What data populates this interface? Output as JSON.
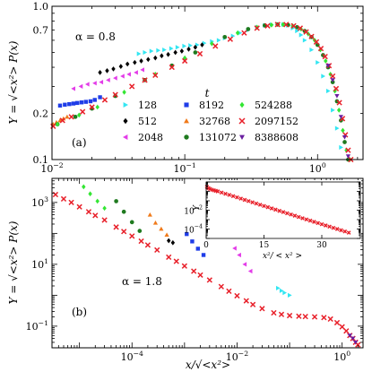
{
  "chart_data": [
    {
      "type": "scatter",
      "panel_label": "(a)",
      "annotation": "α = 0.8",
      "ylabel": "Y = √<x²> P(x)",
      "xscale": "log",
      "yscale": "log",
      "xlim": [
        0.01,
        2.2
      ],
      "ylim": [
        0.1,
        1.0
      ],
      "x_ticks": [
        "10^-2",
        "10^-1",
        "10^0"
      ],
      "y_ticks": [
        "0.1",
        "0.2",
        "0.7",
        "1.0"
      ],
      "legend_title": "t",
      "legend_placement": "lower-center",
      "series": [
        {
          "name": "128",
          "color": "#33e6f2",
          "marker": "tri-right",
          "x": [
            0.045,
            0.05,
            0.056,
            0.063,
            0.07,
            0.079,
            0.088,
            0.099,
            0.11,
            0.124,
            0.14,
            0.16,
            0.18,
            0.2,
            0.23,
            0.26,
            0.3,
            0.35,
            0.4,
            0.45,
            0.5,
            0.55,
            0.6,
            0.65,
            0.7,
            0.75,
            0.8,
            0.9,
            1.0,
            1.1,
            1.2,
            1.3,
            1.4,
            1.5,
            1.6
          ],
          "y": [
            0.49,
            0.5,
            0.51,
            0.515,
            0.52,
            0.53,
            0.54,
            0.55,
            0.555,
            0.56,
            0.575,
            0.59,
            0.6,
            0.62,
            0.64,
            0.67,
            0.7,
            0.73,
            0.75,
            0.76,
            0.765,
            0.76,
            0.75,
            0.72,
            0.69,
            0.65,
            0.6,
            0.52,
            0.43,
            0.35,
            0.28,
            0.21,
            0.16,
            0.12,
            0.09
          ]
        },
        {
          "name": "512",
          "color": "#000000",
          "marker": "diamond",
          "x": [
            0.023,
            0.026,
            0.029,
            0.033,
            0.037,
            0.042,
            0.047,
            0.053,
            0.06,
            0.067,
            0.075,
            0.085,
            0.095,
            0.107,
            0.12,
            0.135
          ],
          "y": [
            0.37,
            0.38,
            0.39,
            0.405,
            0.42,
            0.43,
            0.44,
            0.45,
            0.46,
            0.475,
            0.485,
            0.5,
            0.51,
            0.525,
            0.54,
            0.56
          ]
        },
        {
          "name": "2048",
          "color": "#e33ce8",
          "marker": "tri-left",
          "x": [
            0.0145,
            0.0165,
            0.0185,
            0.021,
            0.0235,
            0.0265,
            0.03,
            0.034,
            0.038,
            0.043,
            0.048
          ],
          "y": [
            0.29,
            0.3,
            0.31,
            0.315,
            0.32,
            0.33,
            0.34,
            0.35,
            0.36,
            0.37,
            0.385
          ]
        },
        {
          "name": "8192",
          "color": "#1f3de8",
          "marker": "square",
          "x": [
            0.0115,
            0.0125,
            0.0135,
            0.0145,
            0.0155,
            0.0167,
            0.018,
            0.0195,
            0.021,
            0.023
          ],
          "y": [
            0.225,
            0.228,
            0.23,
            0.232,
            0.234,
            0.236,
            0.238,
            0.24,
            0.245,
            0.255
          ]
        },
        {
          "name": "32768",
          "color": "#f07a1a",
          "marker": "tri-up",
          "x": [
            0.0102,
            0.0108,
            0.0115,
            0.0122,
            0.013
          ],
          "y": [
            0.17,
            0.175,
            0.18,
            0.185,
            0.19
          ]
        },
        {
          "name": "131072",
          "color": "#1f7a1f",
          "marker": "circle",
          "x": [
            0.011,
            0.015,
            0.02,
            0.03,
            0.05,
            0.08,
            0.12,
            0.2,
            0.3,
            0.4,
            0.5,
            0.6,
            0.7,
            0.8,
            0.9,
            1.0,
            1.1,
            1.2,
            1.3,
            1.4,
            1.5,
            1.6,
            1.7
          ],
          "y": [
            0.17,
            0.19,
            0.215,
            0.26,
            0.33,
            0.41,
            0.5,
            0.63,
            0.71,
            0.75,
            0.76,
            0.755,
            0.73,
            0.69,
            0.63,
            0.56,
            0.48,
            0.4,
            0.32,
            0.24,
            0.18,
            0.13,
            0.1
          ]
        },
        {
          "name": "524288",
          "color": "#33e633",
          "marker": "diamond",
          "x": [
            0.011,
            0.016,
            0.022,
            0.035,
            0.06,
            0.1,
            0.16,
            0.25,
            0.35,
            0.45,
            0.55,
            0.65,
            0.75,
            0.85,
            0.95,
            1.05,
            1.15,
            1.25,
            1.35,
            1.45,
            1.55,
            1.65,
            1.75
          ],
          "y": [
            0.17,
            0.195,
            0.22,
            0.275,
            0.36,
            0.46,
            0.57,
            0.67,
            0.73,
            0.755,
            0.76,
            0.745,
            0.71,
            0.66,
            0.6,
            0.52,
            0.44,
            0.36,
            0.28,
            0.21,
            0.155,
            0.115,
            0.1
          ]
        },
        {
          "name": "2097152",
          "color": "#e8202a",
          "marker": "cross",
          "x": [
            0.0102,
            0.012,
            0.014,
            0.017,
            0.02,
            0.025,
            0.03,
            0.04,
            0.05,
            0.06,
            0.08,
            0.1,
            0.13,
            0.17,
            0.22,
            0.28,
            0.35,
            0.42,
            0.5,
            0.58,
            0.66,
            0.74,
            0.82,
            0.9,
            0.98,
            1.06,
            1.14,
            1.22,
            1.3,
            1.38,
            1.46,
            1.54,
            1.62,
            1.7,
            1.78
          ],
          "y": [
            0.165,
            0.18,
            0.19,
            0.205,
            0.22,
            0.245,
            0.265,
            0.3,
            0.33,
            0.355,
            0.4,
            0.44,
            0.49,
            0.55,
            0.61,
            0.67,
            0.72,
            0.745,
            0.76,
            0.76,
            0.745,
            0.72,
            0.68,
            0.635,
            0.585,
            0.53,
            0.47,
            0.41,
            0.35,
            0.29,
            0.235,
            0.185,
            0.145,
            0.115,
            0.1
          ]
        },
        {
          "name": "8388608",
          "color": "#6a1fa0",
          "marker": "tri-down",
          "x": [
            1.2,
            1.3,
            1.4,
            1.5,
            1.6,
            1.7
          ],
          "y": [
            0.41,
            0.33,
            0.26,
            0.19,
            0.14,
            0.105
          ]
        }
      ]
    },
    {
      "type": "scatter",
      "panel_label": "(b)",
      "annotation": "α = 1.8",
      "xlabel": "x/√<x²>",
      "ylabel": "Y = √<x²> P(x)",
      "xscale": "log",
      "yscale": "log",
      "xlim": [
        3e-06,
        2.5
      ],
      "ylim": [
        0.02,
        6000
      ],
      "x_ticks": [
        "10^-4",
        "10^-2",
        "10^0"
      ],
      "y_ticks": [
        "10^-1",
        "10^1",
        "10^3"
      ],
      "series": [
        {
          "name": "128",
          "color": "#33e6f2",
          "marker": "tri-right",
          "x": [
            0.06,
            0.07,
            0.08,
            0.1
          ],
          "y": [
            1.7,
            1.4,
            1.2,
            1.0
          ]
        },
        {
          "name": "512",
          "color": "#000000",
          "marker": "diamond",
          "x": [
            0.0005,
            0.0006
          ],
          "y": [
            58,
            50
          ]
        },
        {
          "name": "2048",
          "color": "#e33ce8",
          "marker": "tri-left",
          "x": [
            0.009,
            0.011,
            0.014,
            0.018
          ],
          "y": [
            33,
            20,
            10,
            6
          ]
        },
        {
          "name": "8192",
          "color": "#1f3de8",
          "marker": "square",
          "x": [
            0.0011,
            0.0014,
            0.0018,
            0.0023
          ],
          "y": [
            95,
            55,
            32,
            20
          ]
        },
        {
          "name": "32768",
          "color": "#f07a1a",
          "marker": "tri-up",
          "x": [
            0.00022,
            0.00028,
            0.00036,
            0.00046
          ],
          "y": [
            400,
            220,
            140,
            90
          ]
        },
        {
          "name": "131072",
          "color": "#1f7a1f",
          "marker": "circle",
          "x": [
            5e-05,
            7e-05,
            0.0001,
            0.00014
          ],
          "y": [
            1100,
            500,
            230,
            120
          ]
        },
        {
          "name": "524288",
          "color": "#33e633",
          "marker": "diamond",
          "x": [
            1.2e-05,
            1.6e-05,
            2.2e-05,
            3e-05
          ],
          "y": [
            3200,
            1900,
            1100,
            650
          ]
        },
        {
          "name": "2097152",
          "color": "#e8202a",
          "marker": "cross",
          "x": [
            3.5e-06,
            5e-06,
            7e-06,
            1e-05,
            1.5e-05,
            2e-05,
            3e-05,
            5e-05,
            7e-05,
            0.0001,
            0.00015,
            0.0002,
            0.0003,
            0.0005,
            0.0007,
            0.001,
            0.0015,
            0.002,
            0.003,
            0.005,
            0.007,
            0.01,
            0.015,
            0.02,
            0.03,
            0.05,
            0.07,
            0.1,
            0.15,
            0.2,
            0.3,
            0.45,
            0.6,
            0.8,
            1.0,
            1.2,
            1.4,
            1.6,
            1.8,
            2.0
          ],
          "y": [
            1800,
            1300,
            1000,
            720,
            500,
            380,
            270,
            160,
            115,
            82,
            56,
            42,
            29,
            17,
            12.5,
            8.8,
            6.0,
            4.5,
            3.1,
            1.9,
            1.35,
            0.96,
            0.66,
            0.5,
            0.37,
            0.27,
            0.24,
            0.22,
            0.21,
            0.205,
            0.2,
            0.19,
            0.17,
            0.13,
            0.095,
            0.07,
            0.05,
            0.04,
            0.03,
            0.025
          ]
        },
        {
          "name": "8388608",
          "color": "#6a1fa0",
          "marker": "tri-down",
          "x": [
            1.4,
            1.6,
            1.8
          ],
          "y": [
            0.05,
            0.04,
            0.03
          ]
        }
      ]
    },
    {
      "type": "scatter",
      "panel_label": "inset",
      "xlabel": "x²/ < x² >",
      "ylabel": "Y",
      "yscale": "log",
      "xlim": [
        0,
        40
      ],
      "ylim": [
        1e-05,
        10
      ],
      "x_ticks": [
        "0",
        "15",
        "30"
      ],
      "y_ticks": [
        "10^-2",
        "10^-4"
      ],
      "series": [
        {
          "name": "2097152",
          "color": "#e8202a",
          "marker": "cross",
          "x": [
            0.2,
            0.6,
            1,
            1.5,
            2,
            2.5,
            3,
            4,
            5,
            6,
            7,
            8,
            9,
            10,
            11,
            12,
            13,
            14,
            15,
            16,
            17,
            18,
            19,
            20,
            21,
            22,
            23,
            24,
            25,
            26,
            27,
            28,
            29,
            30,
            31,
            32,
            33,
            34,
            35,
            36,
            37
          ],
          "y": [
            3.0,
            2.2,
            1.8,
            1.5,
            1.3,
            1.15,
            1.0,
            0.75,
            0.55,
            0.42,
            0.31,
            0.23,
            0.17,
            0.125,
            0.093,
            0.069,
            0.051,
            0.038,
            0.028,
            0.021,
            0.0155,
            0.0115,
            0.0085,
            0.0063,
            0.0047,
            0.0035,
            0.0026,
            0.0019,
            0.0014,
            0.00105,
            0.00078,
            0.00058,
            0.00043,
            0.00032,
            0.00024,
            0.00018,
            0.000133,
            0.0001,
            7.4e-05,
            5.5e-05,
            4.1e-05
          ]
        }
      ]
    }
  ]
}
